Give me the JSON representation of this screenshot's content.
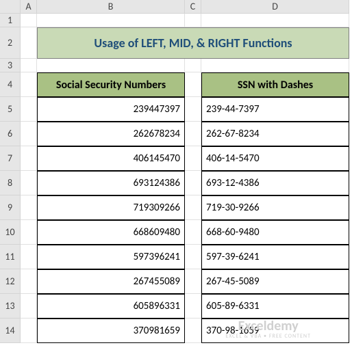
{
  "columns": [
    "A",
    "B",
    "C",
    "D"
  ],
  "rows": [
    "1",
    "2",
    "3",
    "4",
    "5",
    "6",
    "7",
    "8",
    "9",
    "10",
    "11",
    "12",
    "13",
    "14"
  ],
  "title": "Usage of LEFT, MID, & RIGHT Functions",
  "headers": {
    "ssn": "Social Security Numbers",
    "ssn_dash": "SSN with Dashes"
  },
  "data": {
    "ssn": [
      "239447397",
      "262678234",
      "406145470",
      "693124386",
      "719309266",
      "668609480",
      "597396241",
      "267455089",
      "605896331",
      "370981659"
    ],
    "dash": [
      "239-44-7397",
      "262-67-8234",
      "406-14-5470",
      "693-12-4386",
      "719-30-9266",
      "668-60-9480",
      "597-39-6241",
      "267-45-5089",
      "605-89-6331",
      "370-98-1659"
    ]
  },
  "colors": {
    "title_bg": "#c9dab6",
    "header_bg": "#a9c184",
    "title_text": "#1f4e79",
    "grid_header_bg": "#e6e6e6"
  },
  "watermark": {
    "main": "Exceldemy",
    "sub": "EXCEL & VBA • FREE CONTENT"
  }
}
